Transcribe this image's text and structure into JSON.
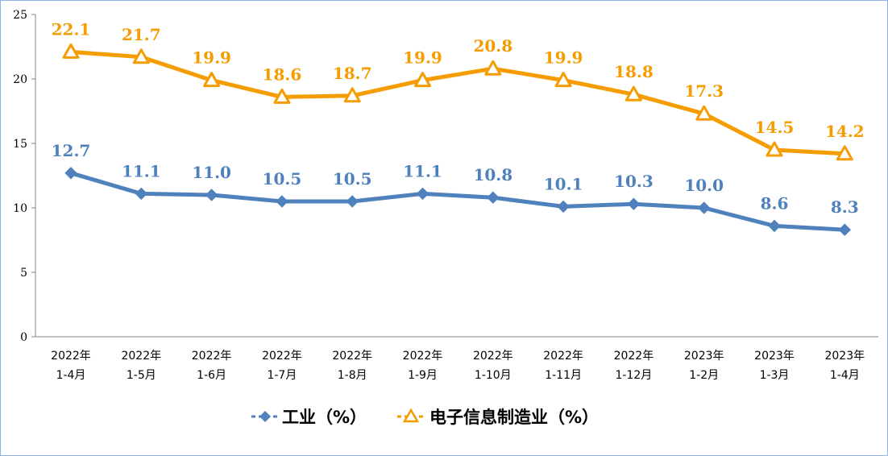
{
  "chart_data": {
    "type": "line",
    "title": "",
    "xlabel": "",
    "ylabel": "",
    "ylim": [
      0,
      25
    ],
    "yticks": [
      0,
      5,
      10,
      15,
      20,
      25
    ],
    "grid": false,
    "legend_position": "bottom",
    "categories": [
      [
        "2022年",
        "1-4月"
      ],
      [
        "2022年",
        "1-5月"
      ],
      [
        "2022年",
        "1-6月"
      ],
      [
        "2022年",
        "1-7月"
      ],
      [
        "2022年",
        "1-8月"
      ],
      [
        "2022年",
        "1-9月"
      ],
      [
        "2022年",
        "1-10月"
      ],
      [
        "2022年",
        "1-11月"
      ],
      [
        "2022年",
        "1-12月"
      ],
      [
        "2023年",
        "1-2月"
      ],
      [
        "2023年",
        "1-3月"
      ],
      [
        "2023年",
        "1-4月"
      ]
    ],
    "series": [
      {
        "name": "工业（%）",
        "color": "#4f81bd",
        "marker": "diamond",
        "values": [
          12.7,
          11.1,
          11.0,
          10.5,
          10.5,
          11.1,
          10.8,
          10.1,
          10.3,
          10.0,
          8.6,
          8.3
        ],
        "labels": [
          "12.7",
          "11.1",
          "11.0",
          "10.5",
          "10.5",
          "11.1",
          "10.8",
          "10.1",
          "10.3",
          "10.0",
          "8.6",
          "8.3"
        ]
      },
      {
        "name": "电子信息制造业（%）",
        "color": "#f59c00",
        "marker": "triangle",
        "values": [
          22.1,
          21.7,
          19.9,
          18.6,
          18.7,
          19.9,
          20.8,
          19.9,
          18.8,
          17.3,
          14.5,
          14.2
        ],
        "labels": [
          "22.1",
          "21.7",
          "19.9",
          "18.6",
          "18.7",
          "19.9",
          "20.8",
          "19.9",
          "18.8",
          "17.3",
          "14.5",
          "14.2"
        ]
      }
    ]
  }
}
